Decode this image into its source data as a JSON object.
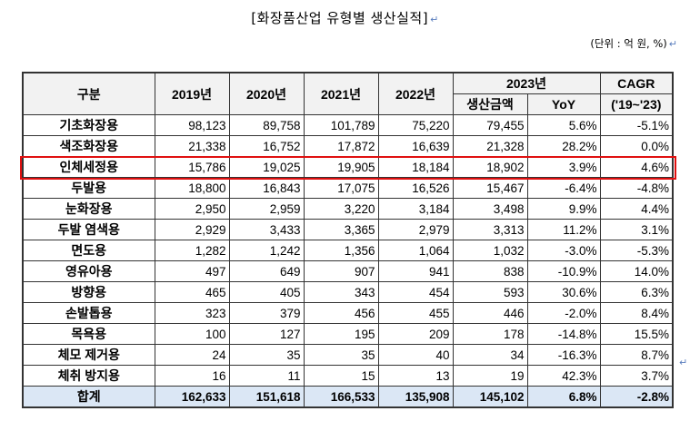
{
  "title": "[화장품산업 유형별 생산실적]",
  "unit": "(단위 : 억 원, %)",
  "headers": {
    "category": "구분",
    "y2019": "2019년",
    "y2020": "2020년",
    "y2021": "2021년",
    "y2022": "2022년",
    "y2023": "2023년",
    "production": "생산금액",
    "yoy": "YoY",
    "cagr": "CAGR",
    "cagr_period": "('19~'23)"
  },
  "rows": [
    {
      "name": "기초화장용",
      "v": [
        "98,123",
        "89,758",
        "101,789",
        "75,220",
        "79,455",
        "5.6%",
        "-5.1%"
      ]
    },
    {
      "name": "색조화장용",
      "v": [
        "21,338",
        "16,752",
        "17,872",
        "16,639",
        "21,328",
        "28.2%",
        "0.0%"
      ]
    },
    {
      "name": "인체세정용",
      "v": [
        "15,786",
        "19,025",
        "19,905",
        "18,184",
        "18,902",
        "3.9%",
        "4.6%"
      ],
      "highlighted": true
    },
    {
      "name": "두발용",
      "v": [
        "18,800",
        "16,843",
        "17,075",
        "16,526",
        "15,467",
        "-6.4%",
        "-4.8%"
      ]
    },
    {
      "name": "눈화장용",
      "v": [
        "2,950",
        "2,959",
        "3,220",
        "3,184",
        "3,498",
        "9.9%",
        "4.4%"
      ]
    },
    {
      "name": "두발 염색용",
      "v": [
        "2,929",
        "3,433",
        "3,365",
        "2,979",
        "3,313",
        "11.2%",
        "3.1%"
      ]
    },
    {
      "name": "면도용",
      "v": [
        "1,282",
        "1,242",
        "1,356",
        "1,064",
        "1,032",
        "-3.0%",
        "-5.3%"
      ]
    },
    {
      "name": "영유아용",
      "v": [
        "497",
        "649",
        "907",
        "941",
        "838",
        "-10.9%",
        "14.0%"
      ]
    },
    {
      "name": "방향용",
      "v": [
        "465",
        "405",
        "343",
        "454",
        "593",
        "30.6%",
        "6.3%"
      ]
    },
    {
      "name": "손발톱용",
      "v": [
        "323",
        "379",
        "456",
        "455",
        "446",
        "-2.0%",
        "8.4%"
      ]
    },
    {
      "name": "목욕용",
      "v": [
        "100",
        "127",
        "195",
        "209",
        "178",
        "-14.8%",
        "15.5%"
      ]
    },
    {
      "name": "체모 제거용",
      "v": [
        "24",
        "35",
        "35",
        "40",
        "34",
        "-16.3%",
        "8.7%"
      ]
    },
    {
      "name": "체취 방지용",
      "v": [
        "16",
        "11",
        "15",
        "13",
        "19",
        "42.3%",
        "3.7%"
      ]
    }
  ],
  "total": {
    "name": "합계",
    "v": [
      "162,633",
      "151,618",
      "166,533",
      "135,908",
      "145,102",
      "6.8%",
      "-2.8%"
    ]
  },
  "colors": {
    "highlight_border": "#e01010",
    "total_bg": "#dbe7f5",
    "header_bg": "#f2f2f2"
  }
}
